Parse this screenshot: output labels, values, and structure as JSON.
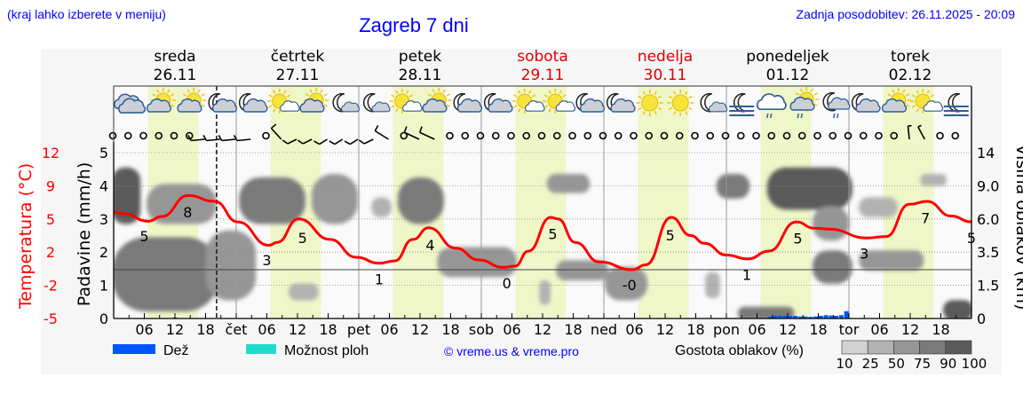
{
  "header": {
    "hint": "(kraj lahko izberete v meniju)",
    "title": "Zagreb 7 dni",
    "updated": "Zadnja posodobitev: 26.11.2025 - 20:09",
    "days": [
      {
        "name": "sreda",
        "date": "26.11",
        "weekend": false
      },
      {
        "name": "četrtek",
        "date": "27.11",
        "weekend": false
      },
      {
        "name": "petek",
        "date": "28.11",
        "weekend": false
      },
      {
        "name": "sobota",
        "date": "29.11",
        "weekend": true
      },
      {
        "name": "nedelja",
        "date": "30.11",
        "weekend": true
      },
      {
        "name": "ponedeljek",
        "date": "01.12",
        "weekend": false
      },
      {
        "name": "torek",
        "date": "02.12",
        "weekend": false
      }
    ]
  },
  "colors": {
    "text_blue": "#0000ff",
    "temperature": "#ff0000",
    "weekend": "#dd0000",
    "daylight": "#eff7c9",
    "rain": "#0055ff",
    "showers": "#22dccb",
    "cloud_density": [
      "#d2d2d2",
      "#b2b2b2",
      "#969696",
      "#7a7a7a",
      "#5a5a5a"
    ]
  },
  "icons": [
    "overcast",
    "partly-cloudy-day",
    "partly-cloudy-day",
    "partly-cloudy-night",
    "partly-cloudy-night",
    "mostly-sunny",
    "partly-cloudy-day",
    "mostly-clear-night",
    "mostly-clear-night",
    "mostly-sunny",
    "partly-cloudy-day",
    "partly-cloudy-night",
    "partly-cloudy-night",
    "mostly-sunny",
    "mostly-sunny",
    "partly-cloudy-night",
    "partly-cloudy-night",
    "sunny",
    "sunny",
    "mostly-clear-night",
    "fog-night",
    "cloudy-drizzle",
    "partly-cloudy-drizzle-day",
    "cloudy-drizzle-night",
    "partly-cloudy-night",
    "partly-cloudy-day",
    "mostly-sunny",
    "fog-night"
  ],
  "wind": {
    "step_hours": 3,
    "barbs": {
      "6": {
        "dir": 240,
        "speed": 10
      },
      "7": {
        "dir": 240,
        "speed": 10
      },
      "8": {
        "dir": 240,
        "speed": 10
      },
      "9": {
        "dir": 240,
        "speed": 10
      },
      "11": {
        "dir": 320,
        "speed": 10
      },
      "12": {
        "dir": 215,
        "speed": 10
      },
      "13": {
        "dir": 215,
        "speed": 10
      },
      "14": {
        "dir": 210,
        "speed": 10
      },
      "15": {
        "dir": 210,
        "speed": 10
      },
      "16": {
        "dir": 210,
        "speed": 10
      },
      "17": {
        "dir": 215,
        "speed": 10
      },
      "18": {
        "dir": 300,
        "speed": 10
      },
      "20": {
        "dir": 290,
        "speed": 10
      },
      "21": {
        "dir": 290,
        "speed": 10
      },
      "52": {
        "dir": 355,
        "speed": 5
      },
      "53": {
        "dir": 335,
        "speed": 5
      }
    },
    "calm_symbol": "circle"
  },
  "chart_data": {
    "type": "meteogram",
    "x_unit": "hours from 26.11 00:00",
    "xlim": [
      0,
      168
    ],
    "now_hour": 20.15,
    "daylight_hours": [
      6.7,
      16.6
    ],
    "x_tick_labels": [
      "06",
      "12",
      "18",
      "čet",
      "06",
      "12",
      "18",
      "pet",
      "06",
      "12",
      "18",
      "sob",
      "06",
      "12",
      "18",
      "ned",
      "06",
      "12",
      "18",
      "pon",
      "06",
      "12",
      "18",
      "tor",
      "06",
      "12",
      "18"
    ],
    "precip_axis": {
      "label": "Padavine (mm/h)",
      "ticks": [
        0,
        1,
        2,
        3,
        4,
        5
      ],
      "ylim": [
        0,
        5
      ]
    },
    "temp_axis": {
      "label": "Temperatura (°C)",
      "ticks": [
        "-5",
        "-2",
        "2",
        "5",
        "9",
        "12"
      ],
      "ylim": [
        -5,
        12
      ]
    },
    "cloud_axis": {
      "label": "Višina oblakov (km)",
      "ticks": [
        "0",
        "1.5",
        "3.5",
        "6.0",
        "9.0",
        "14"
      ]
    },
    "temperature": {
      "hours": [
        0,
        1.9,
        6.8,
        9.4,
        14.6,
        19.8,
        24.3,
        30.4,
        32,
        36.2,
        42.4,
        47.5,
        52,
        55,
        58.6,
        61.7,
        67,
        71.5,
        76.3,
        78.6,
        81.2,
        85.6,
        87,
        90.4,
        95.1,
        101.6,
        104.2,
        109.2,
        113,
        115.7,
        120,
        124.2,
        128.3,
        133.7,
        137.2,
        140.2,
        147.5,
        151.3,
        155.8,
        159.3,
        164,
        168
      ],
      "values": [
        5.9,
        5.75,
        4.97,
        5.45,
        7.6,
        7.0,
        4.9,
        2.5,
        2.8,
        5.2,
        3.1,
        1.27,
        0.66,
        0.9,
        3.1,
        4.3,
        2.2,
        1.0,
        0.24,
        0.36,
        1.9,
        5.36,
        5.2,
        2.8,
        0.8,
        0.0,
        0.5,
        5.36,
        3.5,
        2.7,
        1.5,
        1.1,
        1.9,
        4.9,
        4.25,
        4.15,
        3.25,
        3.4,
        6.7,
        7.0,
        5.5,
        4.9
      ]
    },
    "temp_labels": [
      {
        "hour": 6,
        "label": "5"
      },
      {
        "hour": 14.5,
        "label": "8"
      },
      {
        "hour": 30,
        "label": "3"
      },
      {
        "hour": 37,
        "label": "5"
      },
      {
        "hour": 52,
        "label": "1"
      },
      {
        "hour": 62,
        "label": "4"
      },
      {
        "hour": 77,
        "label": "0"
      },
      {
        "hour": 86,
        "label": "5"
      },
      {
        "hour": 101,
        "label": "-0"
      },
      {
        "hour": 109,
        "label": "5"
      },
      {
        "hour": 124,
        "label": "1"
      },
      {
        "hour": 134,
        "label": "5"
      },
      {
        "hour": 147,
        "label": "3"
      },
      {
        "hour": 159,
        "label": "7"
      },
      {
        "hour": 168,
        "label": "5"
      }
    ],
    "precipitation": {
      "hours": [
        12,
        128.5,
        129.5,
        130.5,
        131.5,
        132.5,
        133.5,
        134.5,
        135.5,
        136.5,
        137.5,
        138.5,
        139.5,
        140.5,
        141.5,
        142.5,
        143.5
      ],
      "values": [
        0.03,
        0.05,
        0.08,
        0.08,
        0.08,
        0.08,
        0.08,
        0.06,
        0.06,
        0.05,
        0.06,
        0.08,
        0.1,
        0.09,
        0.08,
        0.1,
        0.22
      ]
    },
    "clouds": [
      {
        "h": [
          0,
          20.3
        ],
        "km": [
          0.4,
          4.5
        ],
        "density": 75
      },
      {
        "h": [
          0,
          4.9
        ],
        "km": [
          5.75,
          11.5
        ],
        "density": 90
      },
      {
        "h": [
          6.8,
          19.8
        ],
        "km": [
          5.75,
          9
        ],
        "density": 50
      },
      {
        "h": [
          18.4,
          27.5
        ],
        "km": [
          0.9,
          5
        ],
        "density": 50
      },
      {
        "h": [
          24.9,
          37.2
        ],
        "km": [
          5.75,
          10
        ],
        "density": 75
      },
      {
        "h": [
          34.6,
          39.8
        ],
        "km": [
          0.9,
          1.5
        ],
        "density": 25
      },
      {
        "h": [
          39.1,
          47.5
        ],
        "km": [
          5.75,
          10.5
        ],
        "density": 50
      },
      {
        "h": [
          50.8,
          54.1
        ],
        "km": [
          6.3,
          7.8
        ],
        "density": 25
      },
      {
        "h": [
          56,
          64.3
        ],
        "km": [
          5.75,
          10
        ],
        "density": 75
      },
      {
        "h": [
          63.7,
          78.6
        ],
        "km": [
          2.1,
          3.75
        ],
        "density": 50
      },
      {
        "h": [
          83.7,
          85.2
        ],
        "km": [
          0.7,
          1.7
        ],
        "density": 25
      },
      {
        "h": [
          85.2,
          92.9
        ],
        "km": [
          8.5,
          10.5
        ],
        "density": 50
      },
      {
        "h": [
          87,
          96.5
        ],
        "km": [
          1.9,
          2.9
        ],
        "density": 50
      },
      {
        "h": [
          96.5,
          104.2
        ],
        "km": [
          0.9,
          2.5
        ],
        "density": 50
      },
      {
        "h": [
          116.2,
          118.4
        ],
        "km": [
          1,
          2.2
        ],
        "density": 25
      },
      {
        "h": [
          118.4,
          124.2
        ],
        "km": [
          8,
          10.5
        ],
        "density": 75
      },
      {
        "h": [
          122.6,
          132.9
        ],
        "km": [
          0,
          0.45
        ],
        "density": 75
      },
      {
        "h": [
          128.3,
          144.3
        ],
        "km": [
          7,
          11.5
        ],
        "density": 90
      },
      {
        "h": [
          137.2,
          143.7
        ],
        "km": [
          4.5,
          7
        ],
        "density": 50
      },
      {
        "h": [
          137.2,
          144.3
        ],
        "km": [
          1.7,
          3.5
        ],
        "density": 75
      },
      {
        "h": [
          146.3,
          153.2
        ],
        "km": [
          6.3,
          7.8
        ],
        "density": 25
      },
      {
        "h": [
          146.3,
          158.3
        ],
        "km": [
          2.5,
          3.5
        ],
        "density": 50
      },
      {
        "h": [
          158.3,
          162.8
        ],
        "km": [
          9.25,
          10.5
        ],
        "density": 25
      },
      {
        "h": [
          162.8,
          168
        ],
        "km": [
          0,
          0.75
        ],
        "density": 90
      }
    ]
  },
  "legend": {
    "rain": "Dež",
    "showers": "Možnost ploh",
    "credit": "© vreme.us & vreme.pro",
    "density_title": "Gostota oblakov (%)",
    "density_ticks": [
      "10",
      "25",
      "50",
      "75",
      "90",
      "100"
    ]
  }
}
